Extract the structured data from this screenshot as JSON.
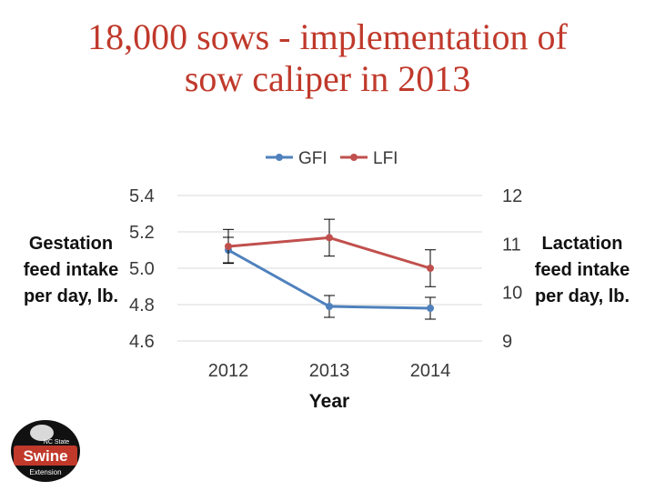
{
  "title": {
    "line1": "18,000 sows - implementation of",
    "line2": "sow caliper in 2013"
  },
  "logo": {
    "text_small": "NC State",
    "text_big": "Swine",
    "text_bottom": "Extension"
  },
  "colors": {
    "title": "#c0392b",
    "gfi": "#4f81bd",
    "lfi": "#c0504d",
    "logo_red": "#c0392b"
  },
  "chart_data": {
    "type": "line",
    "categories": [
      "2012",
      "2013",
      "2014"
    ],
    "xlabel": "Year",
    "legend_position": "top",
    "grid": true,
    "left_axis": {
      "label_lines": [
        "Gestation",
        "feed intake",
        "per day, lb."
      ],
      "ticks": [
        "5.4",
        "5.2",
        "5.0",
        "4.8",
        "4.6"
      ],
      "ylim": [
        4.6,
        5.4
      ]
    },
    "right_axis": {
      "label_lines": [
        "Lactation",
        "feed intake",
        "per day, lb."
      ],
      "ticks": [
        "12",
        "11",
        "10",
        "9"
      ],
      "ylim": [
        9,
        12
      ]
    },
    "series": [
      {
        "name": "GFI",
        "axis": "left",
        "values": [
          5.1,
          4.79,
          4.78
        ],
        "err": [
          0.07,
          0.06,
          0.06
        ]
      },
      {
        "name": "LFI",
        "axis": "right",
        "values": [
          10.95,
          11.13,
          10.5
        ],
        "err": [
          0.35,
          0.38,
          0.38
        ]
      }
    ]
  }
}
